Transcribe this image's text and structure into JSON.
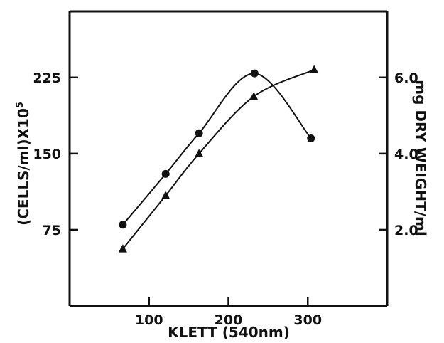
{
  "chart_data": {
    "type": "line",
    "title": "",
    "xlabel": "KLETT  (540nm)",
    "ylabel": "(CELLS/ml)X10^5",
    "ylabel_parts": [
      "(CELLS/ml)X10",
      "5"
    ],
    "y2label": "mg DRY WEIGHT/ml",
    "xlim": [
      0,
      400
    ],
    "ylim": [
      0,
      290
    ],
    "y2lim": [
      0,
      7.733
    ],
    "x_ticks": [
      100,
      200,
      300
    ],
    "x_tick_labels": [
      "100",
      "200",
      "300"
    ],
    "y_ticks": [
      75,
      150,
      225
    ],
    "y_tick_labels": [
      "75",
      "150",
      "225"
    ],
    "y2_ticks": [
      2.0,
      4.0,
      6.0
    ],
    "y2_tick_labels": [
      "2.0",
      "4.0",
      "6.0"
    ],
    "grid": false,
    "series": [
      {
        "marker": "circle",
        "axis": "left",
        "x": [
          67,
          121,
          163,
          233,
          304
        ],
        "y": [
          80,
          130,
          170,
          229,
          165
        ]
      },
      {
        "marker": "triangle",
        "axis": "right",
        "x": [
          67,
          121,
          163,
          232,
          308
        ],
        "y": [
          1.5,
          2.9,
          4.0,
          5.5,
          6.2
        ]
      }
    ]
  }
}
